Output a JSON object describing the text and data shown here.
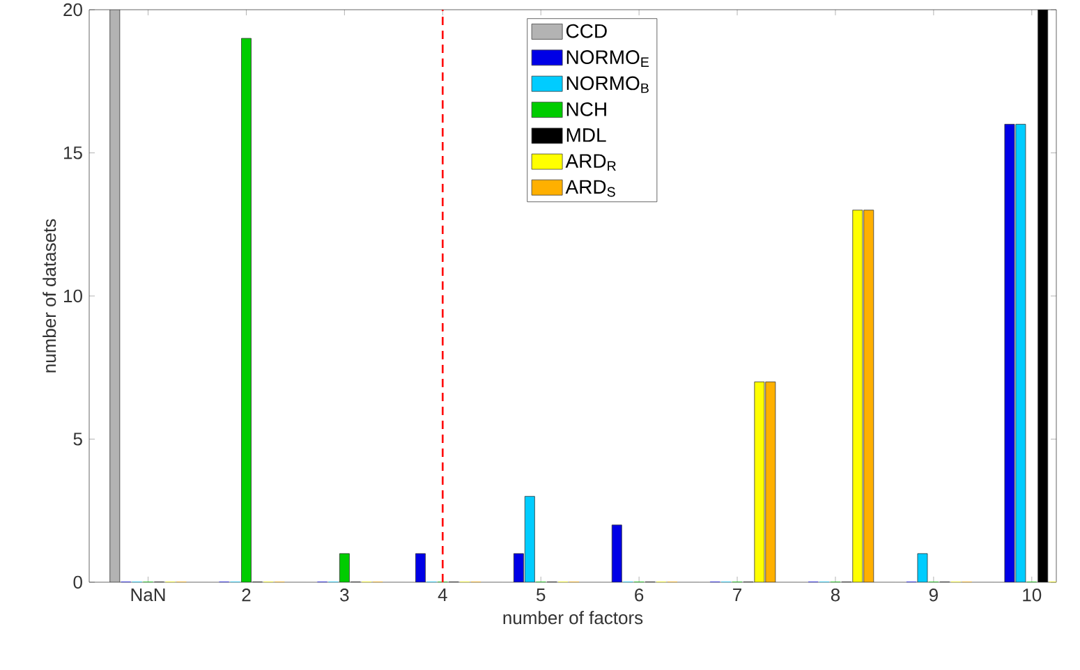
{
  "chart_data": {
    "type": "bar",
    "xlabel": "number of factors",
    "ylabel": "number of datasets",
    "categories": [
      "NaN",
      "2",
      "3",
      "4",
      "5",
      "6",
      "7",
      "8",
      "9",
      "10"
    ],
    "series": [
      {
        "name": "CCD",
        "color": "#b3b3b3",
        "values": [
          20,
          0,
          0,
          0,
          0,
          0,
          0,
          0,
          0,
          0
        ]
      },
      {
        "name": "NORMO$_{E}$",
        "color": "#0000e6",
        "values": [
          0,
          0,
          0,
          1,
          1,
          2,
          0,
          0,
          0,
          16
        ]
      },
      {
        "name": "NORMO$_{B}$",
        "color": "#00ccff",
        "values": [
          0,
          0,
          0,
          0,
          3,
          0,
          0,
          0,
          1,
          16
        ]
      },
      {
        "name": "NCH",
        "color": "#00cc00",
        "values": [
          0,
          19,
          1,
          0,
          0,
          0,
          0,
          0,
          0,
          0
        ]
      },
      {
        "name": "MDL",
        "color": "#000000",
        "values": [
          0,
          0,
          0,
          0,
          0,
          0,
          0,
          0,
          0,
          20
        ]
      },
      {
        "name": "ARD$_{R}$",
        "color": "#ffff00",
        "values": [
          0,
          0,
          0,
          0,
          0,
          0,
          7,
          13,
          0,
          0
        ]
      },
      {
        "name": "ARD$_{S}$",
        "color": "#ffb000",
        "values": [
          0,
          0,
          0,
          0,
          0,
          0,
          7,
          13,
          0,
          0
        ]
      }
    ],
    "ylim": [
      0,
      20
    ],
    "yticks": [
      0,
      5,
      10,
      15,
      20
    ],
    "ref_lines": [
      {
        "axis": "x",
        "value": "4",
        "color": "#ff0000",
        "line_style": "dashed"
      }
    ],
    "legend": "top",
    "grid": false
  }
}
